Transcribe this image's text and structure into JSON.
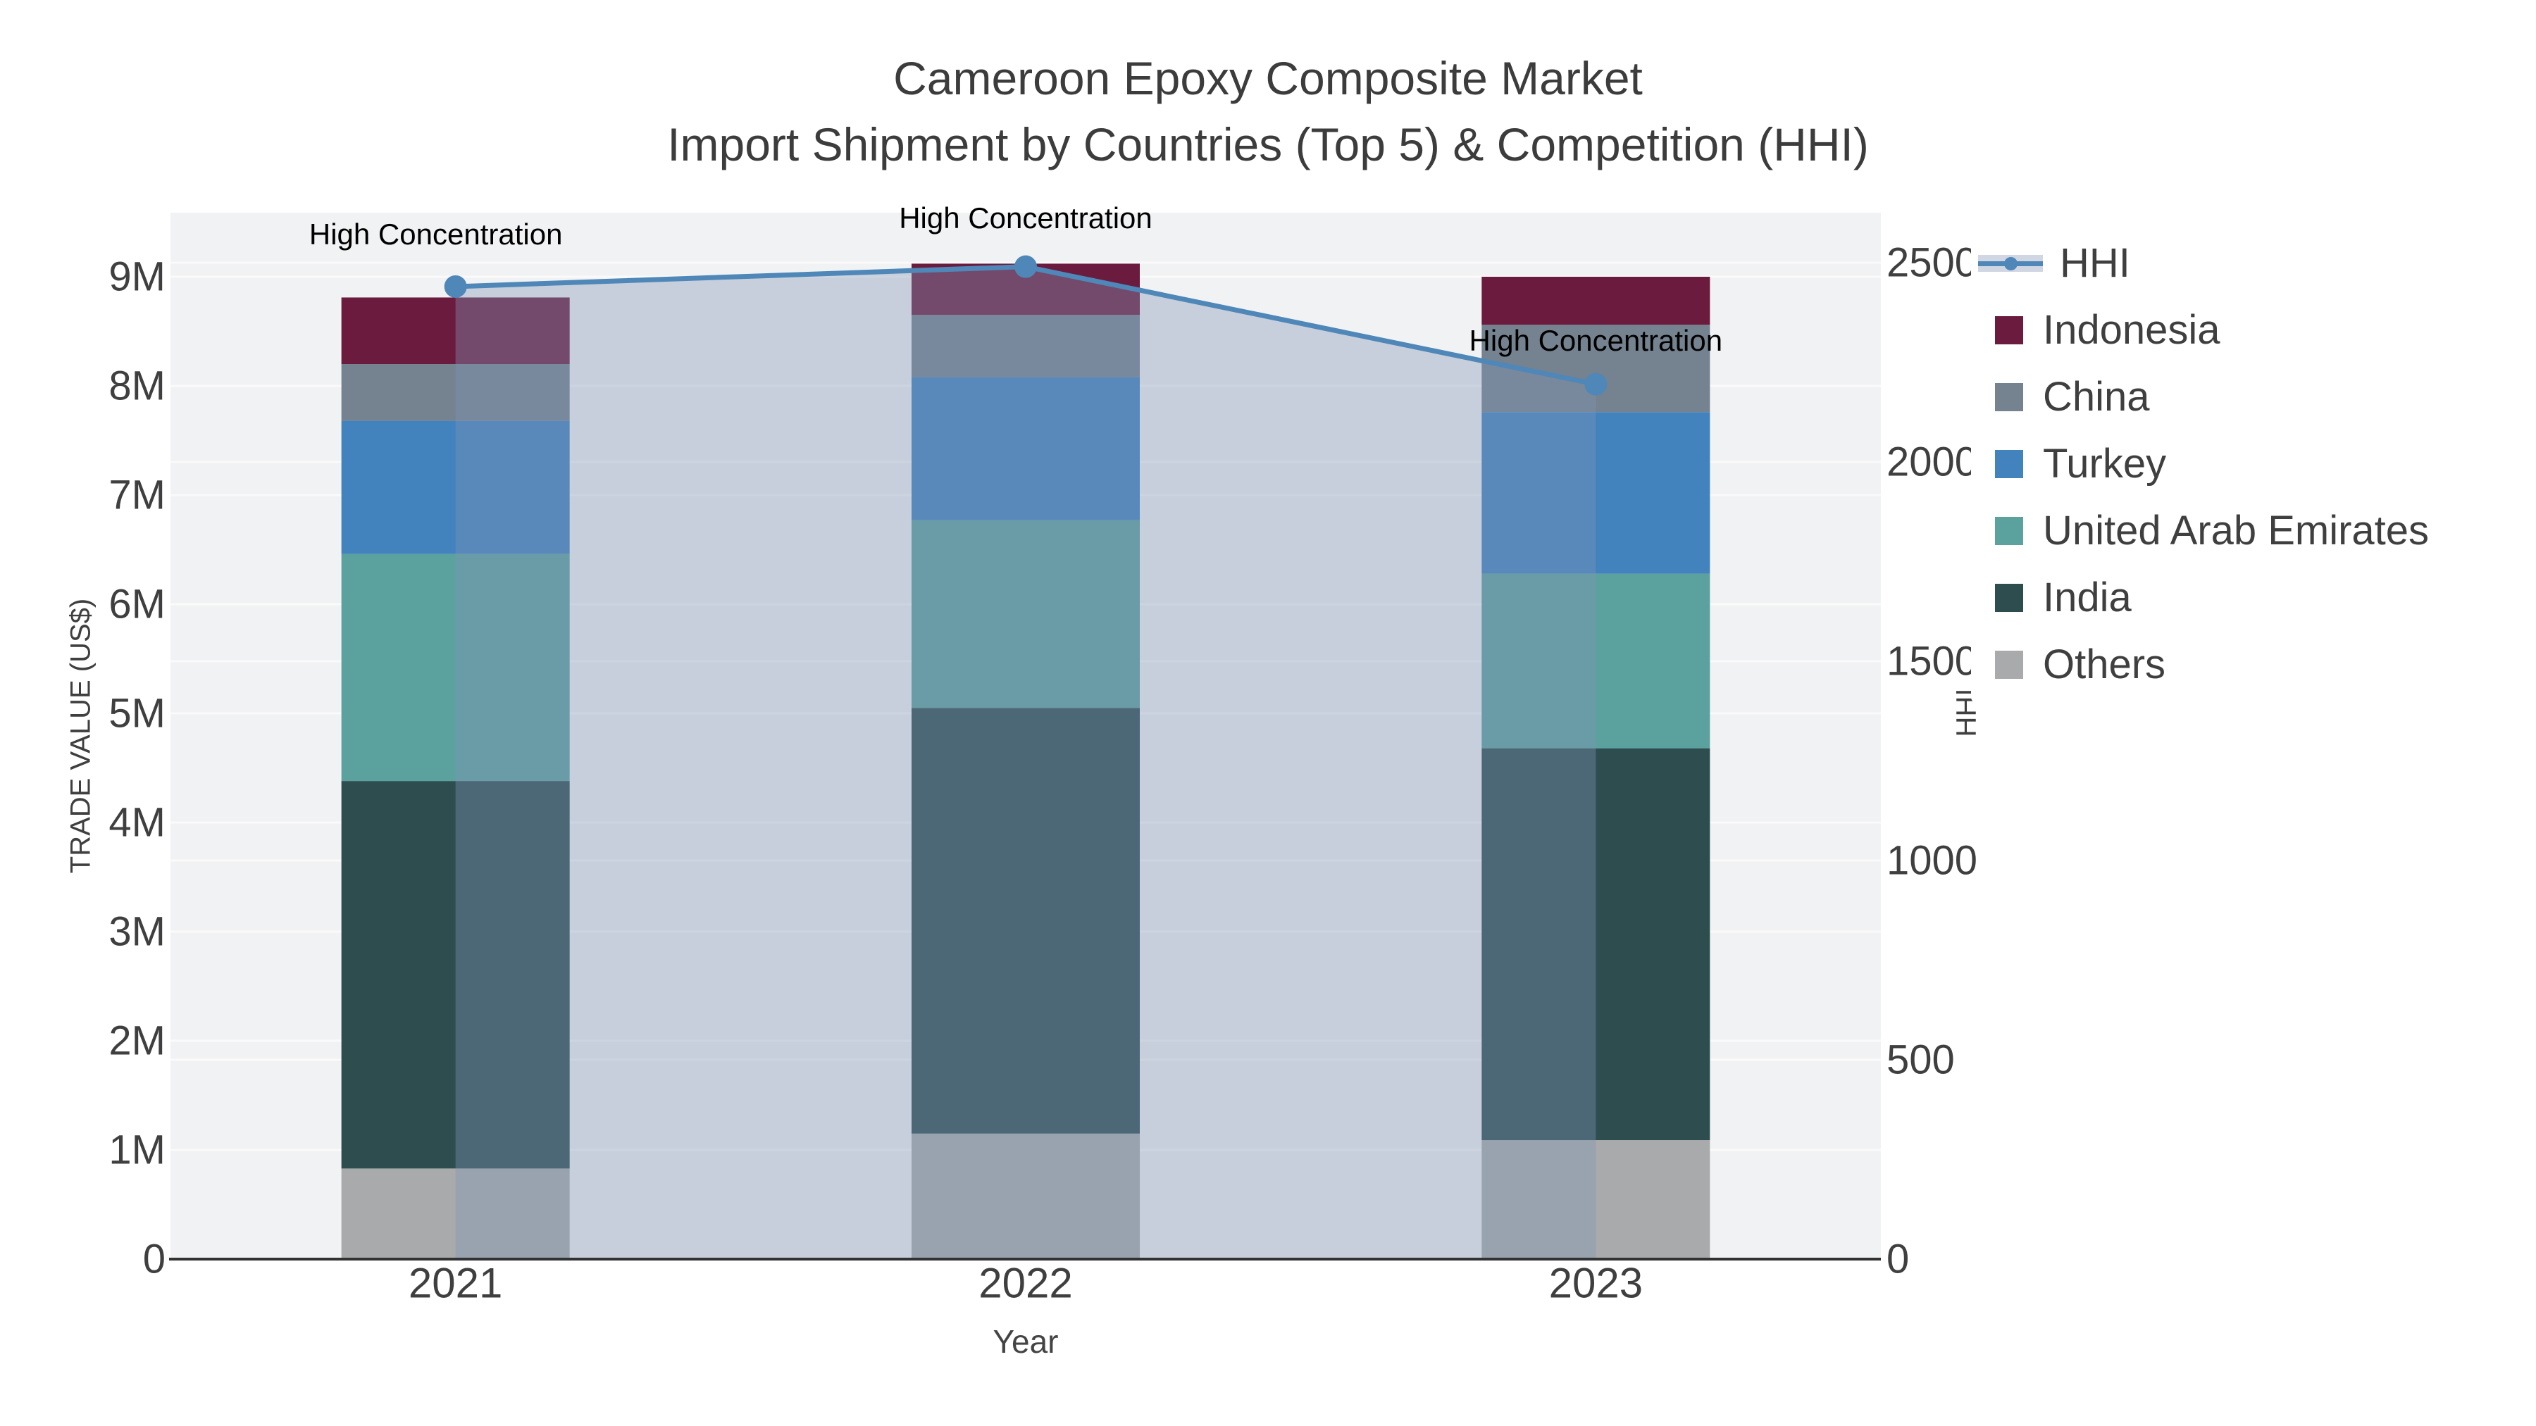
{
  "title": {
    "line1": "Cameroon Epoxy Composite Market",
    "line2": "Import Shipment by Countries (Top 5) & Competition (HHI)"
  },
  "axes": {
    "left": {
      "title": "TRADE VALUE (US$)",
      "ticks": [
        "0",
        "1M",
        "2M",
        "3M",
        "4M",
        "5M",
        "6M",
        "7M",
        "8M",
        "9M"
      ]
    },
    "right": {
      "title": "HHI",
      "ticks": [
        "0",
        "500",
        "1000",
        "1500",
        "2000",
        "2500"
      ]
    },
    "x": {
      "title": "Year",
      "categories": [
        "2021",
        "2022",
        "2023"
      ]
    }
  },
  "legend_labels": [
    "HHI",
    "Indonesia",
    "China",
    "Turkey",
    "United Arab Emirates",
    "India",
    "Others"
  ],
  "annotations": [
    {
      "text": "High Concentration",
      "year": "2021"
    },
    {
      "text": "High Concentration",
      "year": "2022"
    },
    {
      "text": "High Concentration",
      "year": "2023"
    }
  ],
  "colors": {
    "background_plot": "#f1f2f3",
    "gridline": "#fafafa",
    "axis_line": "#323232",
    "hhi_line": "#4e87b8",
    "hhi_fill": "rgba(130,150,182,0.38)",
    "hhi_legend_band": "#d0d7e3"
  },
  "chart_data": {
    "type": "bar+line",
    "title": "Cameroon Epoxy Composite Market — Import Shipment by Countries (Top 5) & Competition (HHI)",
    "x": [
      "2021",
      "2022",
      "2023"
    ],
    "xlabel": "Year",
    "ylabel_left": "TRADE VALUE (US$)",
    "ylabel_right": "HHI",
    "ylim_left": [
      0,
      9600000
    ],
    "ylim_right": [
      0,
      2625
    ],
    "grid": true,
    "legend_position": "right",
    "bar_mode": "stacked",
    "bar_series": [
      {
        "name": "Others",
        "color": "#a9aaab",
        "values": [
          830000,
          1150000,
          1090000
        ]
      },
      {
        "name": "India",
        "color": "#2d4d4f",
        "values": [
          3550000,
          3900000,
          3590000
        ]
      },
      {
        "name": "United Arab Emirates",
        "color": "#5ba19e",
        "values": [
          2080000,
          1720000,
          1600000
        ]
      },
      {
        "name": "Turkey",
        "color": "#4282bd",
        "values": [
          1220000,
          1310000,
          1480000
        ]
      },
      {
        "name": "China",
        "color": "#75828f",
        "values": [
          520000,
          570000,
          800000
        ]
      },
      {
        "name": "Indonesia",
        "color": "#6b1c3e",
        "values": [
          610000,
          470000,
          440000
        ]
      }
    ],
    "line_series": {
      "name": "HHI",
      "color": "#4e87b8",
      "area_fill": "rgba(130,150,182,0.38)",
      "values": [
        2440,
        2490,
        2195
      ],
      "axis": "right",
      "annotation_threshold_label": "High Concentration"
    }
  }
}
